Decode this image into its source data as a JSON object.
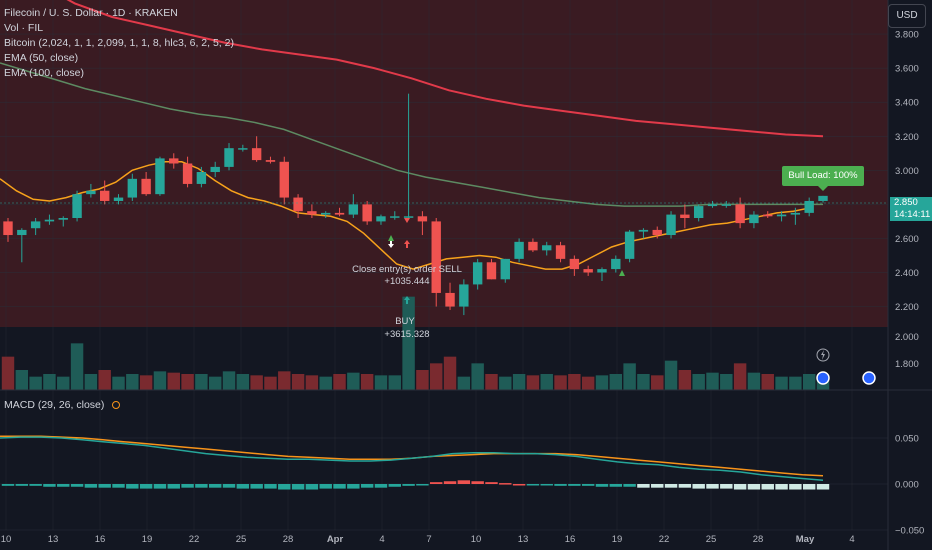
{
  "legend": {
    "symbol": "Filecoin / U. S. Dollar · 1D · KRAKEN",
    "vol": "Vol · FIL",
    "indicator": "Bitcoin (2,024, 1, 1, 2,099, 1, 1, 8, hlc3, 6, 2, 5, 2)",
    "ema50": "EMA (50, close)",
    "ema100": "EMA (100, close)"
  },
  "macd_legend": "MACD (29, 26, close)",
  "currency_button": "USD",
  "price_axis": [
    "3.800",
    "3.600",
    "3.400",
    "3.200",
    "3.000",
    "2.800",
    "2.600",
    "2.400",
    "2.200"
  ],
  "volume_axis": [
    "2.000",
    "1.800"
  ],
  "macd_axis": [
    "0.050",
    "0.000",
    "−0.050"
  ],
  "date_axis": [
    "10",
    "13",
    "16",
    "19",
    "22",
    "25",
    "28",
    "Apr",
    "4",
    "7",
    "10",
    "13",
    "16",
    "19",
    "22",
    "25",
    "28",
    "May",
    "4"
  ],
  "last_price": "2.850",
  "countdown": "14:14:11",
  "bull_label": "Bull Load: 100%",
  "annotations": {
    "sell_label": "Close entry(s) order SELL",
    "sell_value": "+1035.444",
    "buy_label": "BUY",
    "buy_value": "+3615.328"
  },
  "colors": {
    "up": "#26a69a",
    "down": "#ef5350",
    "ema50": "#5d8a62",
    "ema100": "#e23a4a",
    "short_ema": "#f7a21b",
    "macd_line": "#26a69a",
    "signal_line": "#f7931a",
    "background_tint": "#3a1b22"
  },
  "chart_data": {
    "type": "candlestick",
    "candles": [
      [
        2.7,
        2.72,
        2.58,
        2.62
      ],
      [
        2.62,
        2.66,
        2.46,
        2.65
      ],
      [
        2.66,
        2.72,
        2.62,
        2.7
      ],
      [
        2.7,
        2.74,
        2.68,
        2.71
      ],
      [
        2.71,
        2.73,
        2.67,
        2.72
      ],
      [
        2.72,
        2.88,
        2.7,
        2.86
      ],
      [
        2.86,
        2.92,
        2.84,
        2.88
      ],
      [
        2.88,
        2.94,
        2.8,
        2.82
      ],
      [
        2.82,
        2.86,
        2.8,
        2.84
      ],
      [
        2.84,
        2.98,
        2.82,
        2.95
      ],
      [
        2.95,
        2.99,
        2.85,
        2.86
      ],
      [
        2.86,
        3.08,
        2.85,
        3.07
      ],
      [
        3.07,
        3.1,
        3.01,
        3.04
      ],
      [
        3.04,
        3.08,
        2.9,
        2.92
      ],
      [
        2.92,
        3.02,
        2.9,
        2.99
      ],
      [
        2.99,
        3.05,
        2.96,
        3.02
      ],
      [
        3.02,
        3.16,
        3.0,
        3.13
      ],
      [
        3.13,
        3.15,
        3.11,
        3.13
      ],
      [
        3.13,
        3.2,
        3.05,
        3.06
      ],
      [
        3.06,
        3.08,
        3.04,
        3.05
      ],
      [
        3.05,
        3.08,
        2.8,
        2.84
      ],
      [
        2.84,
        2.86,
        2.72,
        2.76
      ],
      [
        2.76,
        2.8,
        2.72,
        2.74
      ],
      [
        2.74,
        2.76,
        2.72,
        2.75
      ],
      [
        2.75,
        2.78,
        2.73,
        2.74
      ],
      [
        2.74,
        2.86,
        2.72,
        2.8
      ],
      [
        2.8,
        2.82,
        2.68,
        2.7
      ],
      [
        2.7,
        2.74,
        2.68,
        2.73
      ],
      [
        2.73,
        2.76,
        2.71,
        2.73
      ],
      [
        2.73,
        3.45,
        2.71,
        2.73
      ],
      [
        2.73,
        2.76,
        2.62,
        2.7
      ],
      [
        2.7,
        2.72,
        2.2,
        2.28
      ],
      [
        2.28,
        2.34,
        2.18,
        2.2
      ],
      [
        2.2,
        2.36,
        2.15,
        2.33
      ],
      [
        2.33,
        2.48,
        2.3,
        2.46
      ],
      [
        2.46,
        2.48,
        2.36,
        2.36
      ],
      [
        2.36,
        2.48,
        2.34,
        2.48
      ],
      [
        2.48,
        2.6,
        2.46,
        2.58
      ],
      [
        2.58,
        2.6,
        2.52,
        2.53
      ],
      [
        2.53,
        2.58,
        2.5,
        2.56
      ],
      [
        2.56,
        2.58,
        2.46,
        2.48
      ],
      [
        2.48,
        2.5,
        2.38,
        2.42
      ],
      [
        2.42,
        2.44,
        2.38,
        2.4
      ],
      [
        2.4,
        2.43,
        2.35,
        2.42
      ],
      [
        2.42,
        2.5,
        2.4,
        2.48
      ],
      [
        2.48,
        2.65,
        2.46,
        2.64
      ],
      [
        2.64,
        2.66,
        2.6,
        2.65
      ],
      [
        2.65,
        2.67,
        2.6,
        2.62
      ],
      [
        2.62,
        2.76,
        2.6,
        2.74
      ],
      [
        2.74,
        2.8,
        2.66,
        2.72
      ],
      [
        2.72,
        2.8,
        2.7,
        2.79
      ],
      [
        2.79,
        2.82,
        2.78,
        2.8
      ],
      [
        2.8,
        2.82,
        2.78,
        2.8
      ],
      [
        2.8,
        2.84,
        2.66,
        2.69
      ],
      [
        2.69,
        2.76,
        2.66,
        2.74
      ],
      [
        2.74,
        2.76,
        2.72,
        2.73
      ],
      [
        2.73,
        2.76,
        2.7,
        2.74
      ],
      [
        2.74,
        2.78,
        2.68,
        2.75
      ],
      [
        2.75,
        2.84,
        2.73,
        2.82
      ],
      [
        2.82,
        2.85,
        2.81,
        2.85
      ]
    ],
    "ema50": [
      3.63,
      3.58,
      3.53,
      3.48,
      3.44,
      3.4,
      3.36,
      3.33,
      3.31,
      3.28,
      3.24,
      3.18,
      3.12,
      3.06,
      3.0,
      2.96,
      2.93,
      2.9,
      2.87,
      2.84,
      2.82,
      2.8,
      2.79,
      2.79,
      2.79,
      2.8,
      2.8,
      2.8,
      2.8,
      2.8
    ],
    "ema100": [
      4.3,
      4.1,
      3.98,
      3.9,
      3.85,
      3.8,
      3.75,
      3.71,
      3.68,
      3.65,
      3.6,
      3.54,
      3.47,
      3.42,
      3.38,
      3.35,
      3.32,
      3.29,
      3.27,
      3.25,
      3.23,
      3.21,
      3.2
    ],
    "short_ema": [
      2.95,
      2.88,
      2.83,
      2.82,
      2.84,
      2.87,
      2.89,
      2.93,
      3.0,
      3.03,
      3.05,
      3.05,
      3.01,
      2.94,
      2.88,
      2.84,
      2.82,
      2.79,
      2.75,
      2.74,
      2.73,
      2.7,
      2.63,
      2.54,
      2.45,
      2.42,
      2.45,
      2.48,
      2.49,
      2.5,
      2.49,
      2.46,
      2.44,
      2.42,
      2.42,
      2.45,
      2.5,
      2.55,
      2.58,
      2.6,
      2.62,
      2.64,
      2.66,
      2.68,
      2.69,
      2.71,
      2.73,
      2.75,
      2.76,
      2.78
    ],
    "volume": [
      1.85,
      1.75,
      1.7,
      1.72,
      1.7,
      1.95,
      1.72,
      1.75,
      1.7,
      1.72,
      1.71,
      1.74,
      1.73,
      1.72,
      1.72,
      1.7,
      1.74,
      1.72,
      1.71,
      1.7,
      1.74,
      1.72,
      1.71,
      1.7,
      1.72,
      1.73,
      1.72,
      1.71,
      1.71,
      2.3,
      1.75,
      1.8,
      1.85,
      1.7,
      1.8,
      1.72,
      1.7,
      1.72,
      1.71,
      1.72,
      1.71,
      1.72,
      1.7,
      1.71,
      1.72,
      1.8,
      1.72,
      1.71,
      1.82,
      1.75,
      1.72,
      1.73,
      1.72,
      1.8,
      1.73,
      1.72,
      1.7,
      1.7,
      1.72,
      1.71
    ],
    "macd_hist": [
      -0.002,
      -0.002,
      -0.002,
      -0.003,
      -0.003,
      -0.003,
      -0.004,
      -0.004,
      -0.004,
      -0.005,
      -0.005,
      -0.005,
      -0.005,
      -0.004,
      -0.004,
      -0.004,
      -0.004,
      -0.005,
      -0.005,
      -0.005,
      -0.006,
      -0.006,
      -0.006,
      -0.005,
      -0.005,
      -0.005,
      -0.004,
      -0.004,
      -0.003,
      -0.002,
      -0.001,
      0.002,
      0.003,
      0.004,
      0.003,
      0.002,
      0.001,
      0.0,
      -0.001,
      -0.001,
      -0.002,
      -0.002,
      -0.002,
      -0.003,
      -0.003,
      -0.003,
      -0.004,
      -0.004,
      -0.004,
      -0.004,
      -0.005,
      -0.005,
      -0.005,
      -0.006,
      -0.006,
      -0.006,
      -0.006,
      -0.006,
      -0.006,
      -0.006
    ],
    "macd_line": [
      0.05,
      0.051,
      0.051,
      0.05,
      0.048,
      0.046,
      0.044,
      0.042,
      0.039,
      0.036,
      0.033,
      0.031,
      0.029,
      0.028,
      0.027,
      0.027,
      0.026,
      0.025,
      0.025,
      0.026,
      0.028,
      0.03,
      0.033,
      0.034,
      0.034,
      0.033,
      0.033,
      0.032,
      0.03,
      0.027,
      0.024,
      0.022,
      0.021,
      0.018,
      0.016,
      0.015,
      0.013,
      0.01,
      0.008,
      0.006,
      0.004
    ],
    "signal_line": [
      0.052,
      0.052,
      0.052,
      0.051,
      0.05,
      0.048,
      0.046,
      0.044,
      0.042,
      0.04,
      0.038,
      0.036,
      0.034,
      0.032,
      0.03,
      0.029,
      0.028,
      0.027,
      0.027,
      0.027,
      0.028,
      0.03,
      0.031,
      0.032,
      0.033,
      0.033,
      0.033,
      0.033,
      0.032,
      0.03,
      0.028,
      0.026,
      0.024,
      0.022,
      0.02,
      0.018,
      0.016,
      0.014,
      0.012,
      0.01,
      0.009
    ],
    "price_range": [
      2.08,
      4.0
    ],
    "macd_range": [
      -0.05,
      0.1
    ]
  }
}
